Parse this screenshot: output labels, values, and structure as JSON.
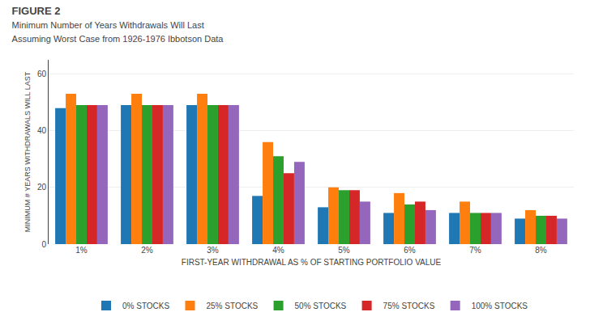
{
  "chart_data": {
    "type": "bar",
    "title": "FIGURE 2",
    "subtitle": [
      "Minimum Number of Years Withdrawals Will Last",
      "Assuming Worst Case from 1926-1976 Ibbotson Data"
    ],
    "xlabel": "FIRST-YEAR WITHDRAWAL AS % OF STARTING PORTFOLIO VALUE",
    "ylabel": "MINIMUM # YEARS WITHDRAWALS WILL LAST",
    "categories": [
      "1%",
      "2%",
      "3%",
      "4%",
      "5%",
      "6%",
      "7%",
      "8%"
    ],
    "series": [
      {
        "name": "0% STOCKS",
        "values": [
          48,
          49,
          49,
          17,
          13,
          11,
          11,
          9
        ]
      },
      {
        "name": "25% STOCKS",
        "values": [
          53,
          53,
          53,
          36,
          20,
          18,
          15,
          12
        ]
      },
      {
        "name": "50% STOCKS",
        "values": [
          49,
          49,
          49,
          31,
          19,
          14,
          11,
          10
        ]
      },
      {
        "name": "75% STOCKS",
        "values": [
          49,
          49,
          49,
          25,
          19,
          15,
          11,
          10
        ]
      },
      {
        "name": "100% STOCKS",
        "values": [
          49,
          49,
          49,
          29,
          15,
          12,
          11,
          9
        ]
      }
    ],
    "ylim": [
      0,
      65
    ],
    "yticks": [
      0,
      20,
      40,
      60
    ],
    "grid": true,
    "legend": "bottom"
  }
}
